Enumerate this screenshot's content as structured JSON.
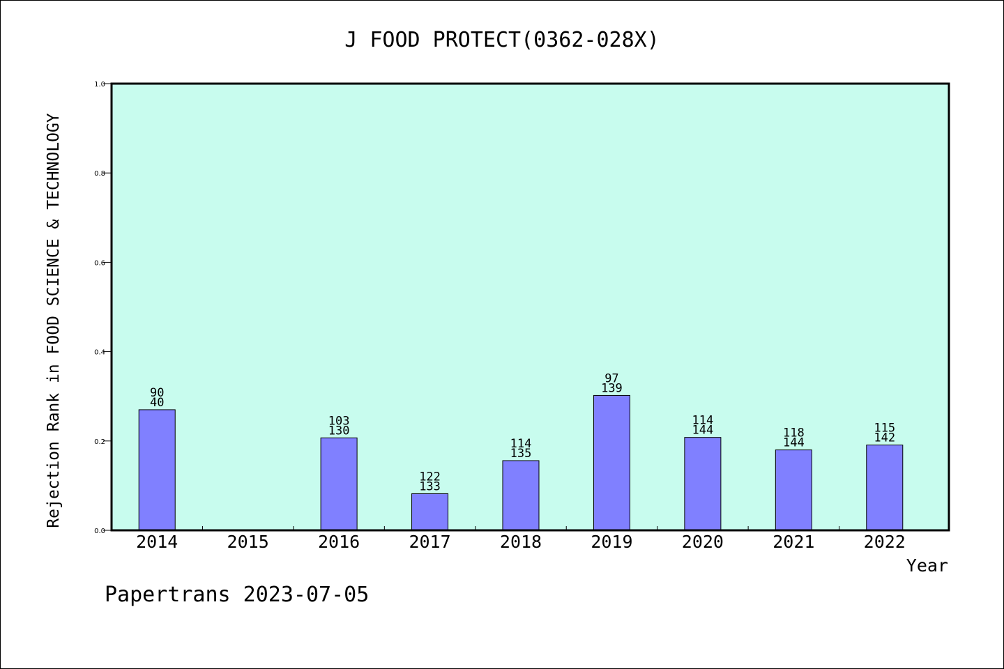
{
  "chart_data": {
    "type": "bar",
    "title": "J FOOD PROTECT(0362-028X)",
    "xlabel": "Year",
    "ylabel": "Rejection Rank in FOOD SCIENCE & TECHNOLOGY",
    "ylim": [
      0,
      1.0
    ],
    "yticks": [
      "0.0",
      "0.2",
      "0.4",
      "0.6",
      "0.8",
      "1.0"
    ],
    "categories": [
      "2014",
      "2015",
      "2016",
      "2017",
      "2018",
      "2019",
      "2020",
      "2021",
      "2022"
    ],
    "values": [
      0.27,
      null,
      0.207,
      0.082,
      0.156,
      0.302,
      0.208,
      0.18,
      0.191
    ],
    "labels_top": [
      "90",
      "",
      "103",
      "122",
      "114",
      "97",
      "114",
      "118",
      "115"
    ],
    "labels_bottom": [
      "40",
      "",
      "130",
      "133",
      "135",
      "139",
      "144",
      "144",
      "142"
    ],
    "grid": false,
    "colors": {
      "plot_bg": "#c8fcee",
      "bar": "#8080ff",
      "axis": "#000000"
    }
  },
  "footer": {
    "credit": "Papertrans 2023-07-05"
  }
}
